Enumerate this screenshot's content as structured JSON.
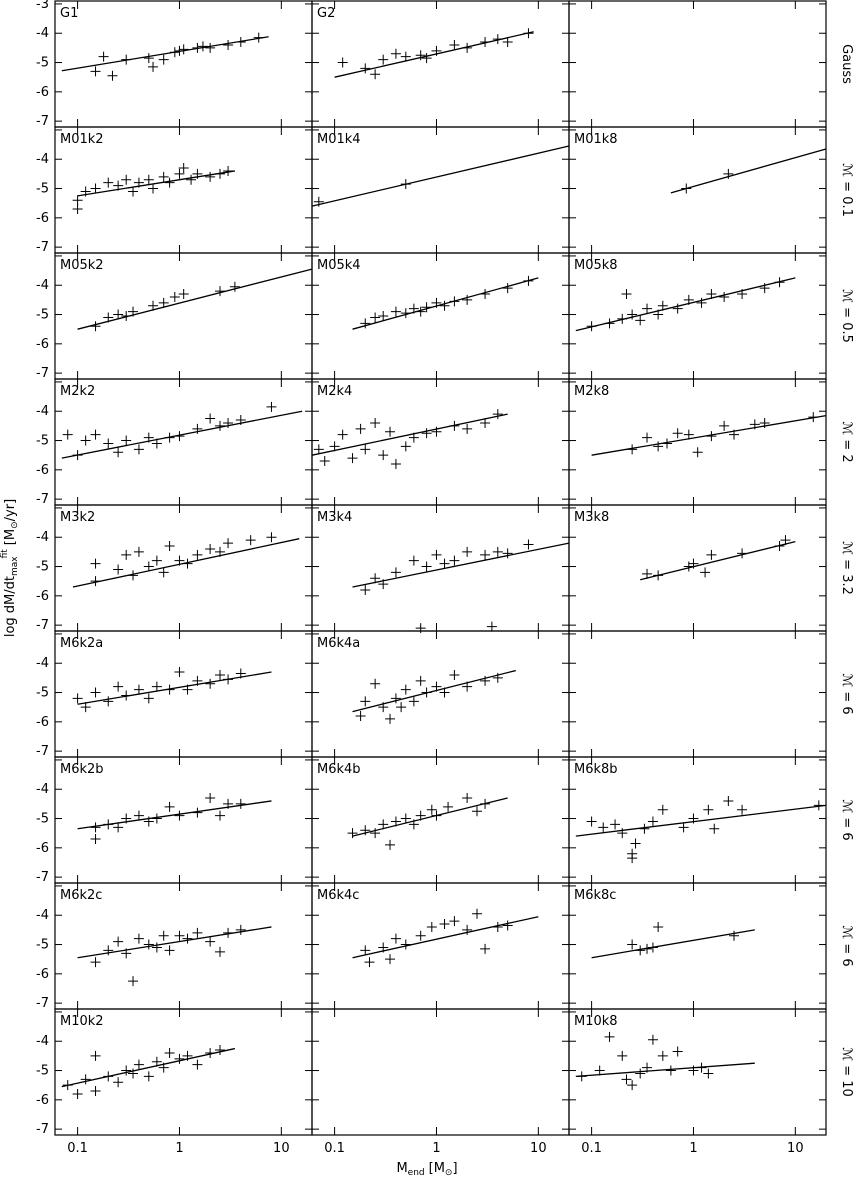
{
  "chart_data": {
    "type": "scatter",
    "log_x": true,
    "xlim": [
      0.06,
      20
    ],
    "ylim": [
      -7.2,
      -2.9
    ],
    "xticks": [
      0.1,
      1,
      10
    ],
    "yticks": [
      -7,
      -6,
      -5,
      -4,
      -3
    ],
    "x_label": [
      "M",
      "end",
      "[M",
      "⊙",
      "]"
    ],
    "y_label": [
      "log dM/dt",
      "max",
      "fit",
      "[M",
      "⊙",
      "/yr]"
    ],
    "row_labels": [
      "Gauss",
      "ℳ = 0.1",
      "ℳ = 0.5",
      "ℳ = 2",
      "ℳ = 3.2",
      "ℳ = 6",
      "ℳ = 6",
      "ℳ = 6",
      "ℳ = 10"
    ],
    "panels": [
      {
        "title": "G1",
        "x": [
          0.15,
          0.18,
          0.22,
          0.3,
          0.5,
          0.55,
          0.7,
          0.9,
          1.0,
          1.1,
          1.5,
          1.7,
          2,
          3,
          4,
          6
        ],
        "y": [
          -5.3,
          -4.8,
          -5.45,
          -4.9,
          -4.85,
          -5.15,
          -4.9,
          -4.65,
          -4.6,
          -4.55,
          -4.5,
          -4.45,
          -4.5,
          -4.4,
          -4.3,
          -4.15
        ],
        "fit_x": [
          0.07,
          7.5
        ],
        "fit_y": [
          -5.28,
          -4.12
        ]
      },
      {
        "title": "G2",
        "x": [
          0.12,
          0.2,
          0.25,
          0.3,
          0.4,
          0.5,
          0.7,
          0.8,
          1,
          1.5,
          2,
          3,
          4,
          5,
          8
        ],
        "y": [
          -5.0,
          -5.2,
          -5.4,
          -4.9,
          -4.7,
          -4.8,
          -4.75,
          -4.85,
          -4.6,
          -4.4,
          -4.5,
          -4.3,
          -4.2,
          -4.3,
          -4.0
        ],
        "fit_x": [
          0.1,
          9
        ],
        "fit_y": [
          -5.5,
          -3.95
        ]
      },
      {
        "title": "M01k2",
        "x": [
          0.1,
          0.1,
          0.12,
          0.15,
          0.2,
          0.25,
          0.3,
          0.35,
          0.4,
          0.5,
          0.55,
          0.7,
          0.8,
          1,
          1.1,
          1.3,
          1.5,
          2,
          2.5,
          3
        ],
        "y": [
          -5.7,
          -5.4,
          -5.1,
          -5.0,
          -4.8,
          -4.9,
          -4.7,
          -5.1,
          -4.8,
          -4.7,
          -5.0,
          -4.6,
          -4.8,
          -4.5,
          -4.3,
          -4.7,
          -4.5,
          -4.6,
          -4.5,
          -4.4
        ],
        "fit_x": [
          0.1,
          3.5
        ],
        "fit_y": [
          -5.25,
          -4.4
        ]
      },
      {
        "title": "M01k4",
        "x": [
          0.07,
          0.5
        ],
        "y": [
          -5.45,
          -4.85
        ],
        "fit_x": [
          0.06,
          20
        ],
        "fit_y": [
          -5.6,
          -3.55
        ]
      },
      {
        "title": "M01k8",
        "x": [
          0.85,
          2.2
        ],
        "y": [
          -5.0,
          -4.5
        ],
        "fit_x": [
          0.6,
          20
        ],
        "fit_y": [
          -5.15,
          -3.65
        ]
      },
      {
        "title": "M05k2",
        "x": [
          0.15,
          0.2,
          0.25,
          0.3,
          0.35,
          0.55,
          0.7,
          0.9,
          1.1,
          2.5,
          3.5
        ],
        "y": [
          -5.4,
          -5.1,
          -5.0,
          -5.05,
          -4.9,
          -4.7,
          -4.6,
          -4.4,
          -4.3,
          -4.2,
          -4.05
        ],
        "fit_x": [
          0.1,
          20
        ],
        "fit_y": [
          -5.5,
          -3.45
        ]
      },
      {
        "title": "M05k4",
        "x": [
          0.2,
          0.25,
          0.3,
          0.4,
          0.5,
          0.6,
          0.7,
          0.8,
          1,
          1.2,
          1.5,
          2,
          3,
          5,
          8
        ],
        "y": [
          -5.3,
          -5.1,
          -5.05,
          -4.9,
          -4.95,
          -4.8,
          -4.9,
          -4.75,
          -4.6,
          -4.7,
          -4.55,
          -4.5,
          -4.3,
          -4.1,
          -3.85
        ],
        "fit_x": [
          0.15,
          10
        ],
        "fit_y": [
          -5.5,
          -3.75
        ]
      },
      {
        "title": "M05k8",
        "x": [
          0.1,
          0.15,
          0.2,
          0.22,
          0.25,
          0.3,
          0.35,
          0.45,
          0.5,
          0.7,
          0.9,
          1.2,
          1.5,
          2,
          3,
          5,
          7
        ],
        "y": [
          -5.4,
          -5.3,
          -5.15,
          -4.3,
          -5.0,
          -5.2,
          -4.8,
          -5.0,
          -4.7,
          -4.8,
          -4.5,
          -4.6,
          -4.3,
          -4.4,
          -4.3,
          -4.1,
          -3.9
        ],
        "fit_x": [
          0.07,
          10
        ],
        "fit_y": [
          -5.55,
          -3.75
        ]
      },
      {
        "title": "M2k2",
        "x": [
          0.08,
          0.1,
          0.12,
          0.15,
          0.2,
          0.25,
          0.3,
          0.4,
          0.5,
          0.6,
          0.8,
          1,
          1.5,
          2,
          2.5,
          3,
          4,
          8
        ],
        "y": [
          -4.8,
          -5.5,
          -5.0,
          -4.8,
          -5.1,
          -5.4,
          -5.0,
          -5.3,
          -4.9,
          -5.1,
          -4.9,
          -4.85,
          -4.6,
          -4.25,
          -4.5,
          -4.4,
          -4.3,
          -3.85
        ],
        "fit_x": [
          0.07,
          16
        ],
        "fit_y": [
          -5.6,
          -4.0
        ]
      },
      {
        "title": "M2k4",
        "x": [
          0.07,
          0.08,
          0.1,
          0.12,
          0.15,
          0.18,
          0.2,
          0.25,
          0.3,
          0.35,
          0.4,
          0.5,
          0.6,
          0.8,
          1,
          1.5,
          2,
          3,
          4
        ],
        "y": [
          -5.3,
          -5.7,
          -5.2,
          -4.8,
          -5.6,
          -4.6,
          -5.3,
          -4.4,
          -5.5,
          -4.7,
          -5.8,
          -5.2,
          -4.9,
          -4.75,
          -4.7,
          -4.5,
          -4.6,
          -4.4,
          -4.1
        ],
        "fit_x": [
          0.06,
          5
        ],
        "fit_y": [
          -5.5,
          -4.1
        ]
      },
      {
        "title": "M2k8",
        "x": [
          0.25,
          0.35,
          0.45,
          0.55,
          0.7,
          0.9,
          1.1,
          1.5,
          2,
          2.5,
          4,
          5,
          15
        ],
        "y": [
          -5.3,
          -4.9,
          -5.2,
          -5.1,
          -4.75,
          -4.8,
          -5.4,
          -4.85,
          -4.5,
          -4.8,
          -4.45,
          -4.4,
          -4.2
        ],
        "fit_x": [
          0.1,
          20
        ],
        "fit_y": [
          -5.5,
          -4.15
        ]
      },
      {
        "title": "M3k2",
        "x": [
          0.15,
          0.15,
          0.25,
          0.3,
          0.35,
          0.4,
          0.5,
          0.6,
          0.7,
          0.8,
          1,
          1.2,
          1.5,
          2,
          2.5,
          3,
          5,
          8
        ],
        "y": [
          -4.9,
          -5.5,
          -5.1,
          -4.6,
          -5.3,
          -4.5,
          -5.0,
          -4.8,
          -5.2,
          -4.3,
          -4.8,
          -4.9,
          -4.6,
          -4.4,
          -4.5,
          -4.2,
          -4.1,
          -4.0
        ],
        "fit_x": [
          0.09,
          15
        ],
        "fit_y": [
          -5.7,
          -4.05
        ]
      },
      {
        "title": "M3k4",
        "x": [
          0.2,
          0.25,
          0.3,
          0.4,
          0.6,
          0.7,
          0.8,
          1,
          1.2,
          1.5,
          2,
          3,
          3.5,
          4,
          5,
          8
        ],
        "y": [
          -5.8,
          -5.4,
          -5.6,
          -5.2,
          -4.8,
          -7.1,
          -5.0,
          -4.6,
          -4.9,
          -4.8,
          -4.5,
          -4.6,
          -7.05,
          -4.5,
          -4.55,
          -4.25
        ],
        "fit_x": [
          0.15,
          20
        ],
        "fit_y": [
          -5.7,
          -4.2
        ]
      },
      {
        "title": "M3k8",
        "x": [
          0.35,
          0.45,
          0.9,
          1,
          1.3,
          1.5,
          3,
          7,
          8
        ],
        "y": [
          -5.25,
          -5.3,
          -5.0,
          -4.9,
          -5.2,
          -4.6,
          -4.55,
          -4.3,
          -4.1
        ],
        "fit_x": [
          0.3,
          10
        ],
        "fit_y": [
          -5.45,
          -4.15
        ]
      },
      {
        "title": "M6k2a",
        "x": [
          0.1,
          0.12,
          0.15,
          0.2,
          0.25,
          0.3,
          0.4,
          0.5,
          0.6,
          0.8,
          1,
          1.2,
          1.5,
          2,
          2.5,
          3,
          4
        ],
        "y": [
          -5.2,
          -5.5,
          -5.0,
          -5.3,
          -4.8,
          -5.1,
          -4.9,
          -5.2,
          -4.8,
          -4.9,
          -4.3,
          -4.9,
          -4.6,
          -4.7,
          -4.4,
          -4.55,
          -4.35
        ],
        "fit_x": [
          0.1,
          8
        ],
        "fit_y": [
          -5.4,
          -4.3
        ]
      },
      {
        "title": "M6k4a",
        "x": [
          0.18,
          0.2,
          0.25,
          0.3,
          0.35,
          0.4,
          0.45,
          0.5,
          0.6,
          0.7,
          0.8,
          1,
          1.2,
          1.5,
          2,
          3,
          4
        ],
        "y": [
          -5.8,
          -5.3,
          -4.7,
          -5.5,
          -5.9,
          -5.2,
          -5.5,
          -4.9,
          -5.3,
          -4.6,
          -5.0,
          -4.8,
          -5.0,
          -4.4,
          -4.8,
          -4.6,
          -4.5
        ],
        "fit_x": [
          0.15,
          6
        ],
        "fit_y": [
          -5.65,
          -4.25
        ]
      },
      {
        "title": "M6k2b",
        "x": [
          0.15,
          0.15,
          0.2,
          0.25,
          0.3,
          0.4,
          0.5,
          0.6,
          0.8,
          1,
          1.5,
          2,
          2.5,
          3,
          4
        ],
        "y": [
          -5.3,
          -5.7,
          -5.2,
          -5.3,
          -5.0,
          -4.9,
          -5.1,
          -5.0,
          -4.6,
          -4.9,
          -4.8,
          -4.3,
          -4.9,
          -4.5,
          -4.5
        ],
        "fit_x": [
          0.1,
          8
        ],
        "fit_y": [
          -5.35,
          -4.4
        ]
      },
      {
        "title": "M6k4b",
        "x": [
          0.15,
          0.2,
          0.25,
          0.3,
          0.35,
          0.4,
          0.5,
          0.6,
          0.7,
          0.9,
          1,
          1.3,
          2,
          2.5,
          3
        ],
        "y": [
          -5.5,
          -5.4,
          -5.5,
          -5.2,
          -5.9,
          -5.1,
          -5.0,
          -5.2,
          -4.9,
          -4.7,
          -4.9,
          -4.6,
          -4.3,
          -4.75,
          -4.5
        ],
        "fit_x": [
          0.15,
          5
        ],
        "fit_y": [
          -5.6,
          -4.3
        ]
      },
      {
        "title": "M6k8b",
        "x": [
          0.1,
          0.13,
          0.17,
          0.2,
          0.25,
          0.25,
          0.27,
          0.33,
          0.4,
          0.5,
          0.8,
          1,
          1.4,
          1.6,
          2.2,
          3,
          17
        ],
        "y": [
          -5.1,
          -5.3,
          -5.2,
          -5.5,
          -6.2,
          -6.35,
          -5.85,
          -5.35,
          -5.1,
          -4.7,
          -5.3,
          -5.0,
          -4.7,
          -5.35,
          -4.4,
          -4.7,
          -4.55
        ],
        "fit_x": [
          0.07,
          20
        ],
        "fit_y": [
          -5.6,
          -4.55
        ]
      },
      {
        "title": "M6k2c",
        "x": [
          0.15,
          0.2,
          0.25,
          0.3,
          0.35,
          0.4,
          0.5,
          0.6,
          0.7,
          0.8,
          1,
          1.2,
          1.5,
          2,
          2.5,
          3,
          4
        ],
        "y": [
          -5.6,
          -5.2,
          -4.9,
          -5.3,
          -6.25,
          -4.8,
          -5.0,
          -5.1,
          -4.7,
          -5.2,
          -4.7,
          -4.8,
          -4.6,
          -4.9,
          -5.25,
          -4.6,
          -4.5
        ],
        "fit_x": [
          0.1,
          8
        ],
        "fit_y": [
          -5.45,
          -4.4
        ]
      },
      {
        "title": "M6k4c",
        "x": [
          0.2,
          0.22,
          0.3,
          0.35,
          0.4,
          0.5,
          0.7,
          0.9,
          1.2,
          1.5,
          2,
          2.5,
          3,
          4,
          5
        ],
        "y": [
          -5.2,
          -5.6,
          -5.1,
          -5.5,
          -4.8,
          -5.0,
          -4.7,
          -4.4,
          -4.3,
          -4.2,
          -4.5,
          -3.95,
          -5.15,
          -4.4,
          -4.35
        ],
        "fit_x": [
          0.15,
          10
        ],
        "fit_y": [
          -5.45,
          -4.05
        ]
      },
      {
        "title": "M6k8c",
        "x": [
          0.25,
          0.3,
          0.35,
          0.4,
          0.45,
          2.5
        ],
        "y": [
          -5.0,
          -5.2,
          -5.15,
          -5.1,
          -4.4,
          -4.7
        ],
        "fit_x": [
          0.1,
          4
        ],
        "fit_y": [
          -5.45,
          -4.5
        ]
      },
      {
        "title": "M10k2",
        "x": [
          0.08,
          0.1,
          0.12,
          0.15,
          0.15,
          0.2,
          0.25,
          0.3,
          0.35,
          0.4,
          0.5,
          0.6,
          0.7,
          0.8,
          1,
          1.2,
          1.5,
          2,
          2.5
        ],
        "y": [
          -5.5,
          -5.8,
          -5.3,
          -4.5,
          -5.7,
          -5.2,
          -5.4,
          -5.0,
          -5.1,
          -4.8,
          -5.2,
          -4.7,
          -4.9,
          -4.4,
          -4.6,
          -4.5,
          -4.8,
          -4.4,
          -4.3
        ],
        "fit_x": [
          0.07,
          3.5
        ],
        "fit_y": [
          -5.55,
          -4.25
        ]
      },
      {
        "title": "M10k8",
        "x": [
          0.08,
          0.12,
          0.15,
          0.2,
          0.22,
          0.25,
          0.3,
          0.35,
          0.4,
          0.5,
          0.6,
          0.7,
          1,
          1.2,
          1.4
        ],
        "y": [
          -5.2,
          -5.0,
          -3.85,
          -4.5,
          -5.3,
          -5.5,
          -5.1,
          -4.9,
          -3.95,
          -4.5,
          -5.0,
          -4.35,
          -5.0,
          -4.9,
          -5.1
        ],
        "fit_x": [
          0.07,
          4
        ],
        "fit_y": [
          -5.2,
          -4.75
        ]
      }
    ]
  }
}
